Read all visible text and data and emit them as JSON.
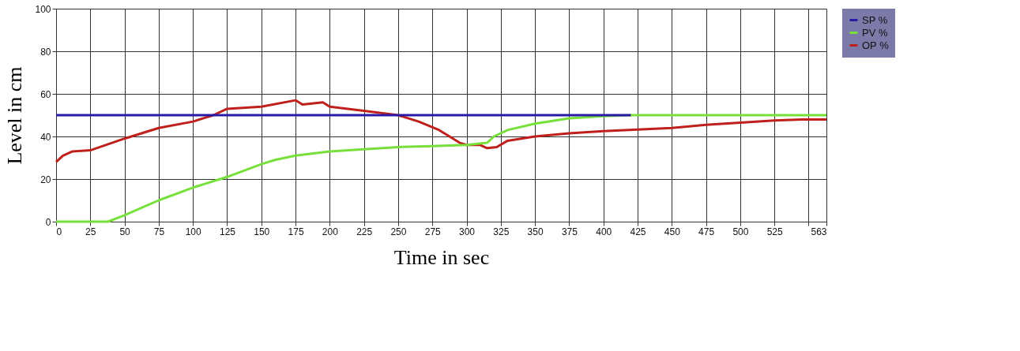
{
  "chart_data": {
    "type": "line",
    "xlabel": "Time in sec",
    "ylabel": "Level in cm",
    "xlim": [
      0,
      563
    ],
    "xticks": [
      0,
      25,
      50,
      75,
      100,
      125,
      150,
      175,
      200,
      225,
      250,
      275,
      300,
      325,
      350,
      375,
      400,
      425,
      450,
      475,
      500,
      525,
      {
        "value": 550,
        "label": null
      },
      563
    ],
    "ylim": [
      0,
      100
    ],
    "yticks": [
      0,
      20,
      40,
      60,
      80,
      100
    ],
    "grid": true,
    "legend": "top right",
    "marker": "none",
    "line_style": "solid",
    "series": [
      {
        "name": "SP %",
        "color": "#2a1aa8",
        "x": [
          0,
          420
        ],
        "values": [
          50,
          50
        ]
      },
      {
        "name": "PV %",
        "color": "#77e03a",
        "x": [
          0,
          38,
          50,
          75,
          100,
          125,
          150,
          160,
          175,
          200,
          225,
          250,
          275,
          300,
          315,
          320,
          330,
          350,
          375,
          400,
          420,
          563
        ],
        "values": [
          0,
          0,
          3,
          10,
          16,
          21,
          27,
          29,
          31,
          33,
          34,
          35,
          35.5,
          36,
          37,
          40,
          43,
          46,
          48.5,
          49.5,
          50,
          50
        ]
      },
      {
        "name": "OP %",
        "color": "#c0201c",
        "x": [
          0,
          5,
          12,
          25,
          50,
          75,
          100,
          115,
          125,
          150,
          175,
          180,
          195,
          200,
          225,
          250,
          265,
          280,
          295,
          300,
          310,
          315,
          322,
          330,
          350,
          375,
          400,
          450,
          475,
          500,
          525,
          545,
          563
        ],
        "values": [
          28,
          31,
          33,
          33.5,
          39,
          44,
          47,
          50,
          53,
          54,
          57,
          55,
          56,
          54,
          52,
          50,
          47,
          43,
          37,
          36,
          36,
          34.5,
          35,
          38,
          40,
          41.5,
          42.5,
          44,
          45.5,
          46.5,
          47.5,
          48,
          48
        ]
      }
    ]
  }
}
